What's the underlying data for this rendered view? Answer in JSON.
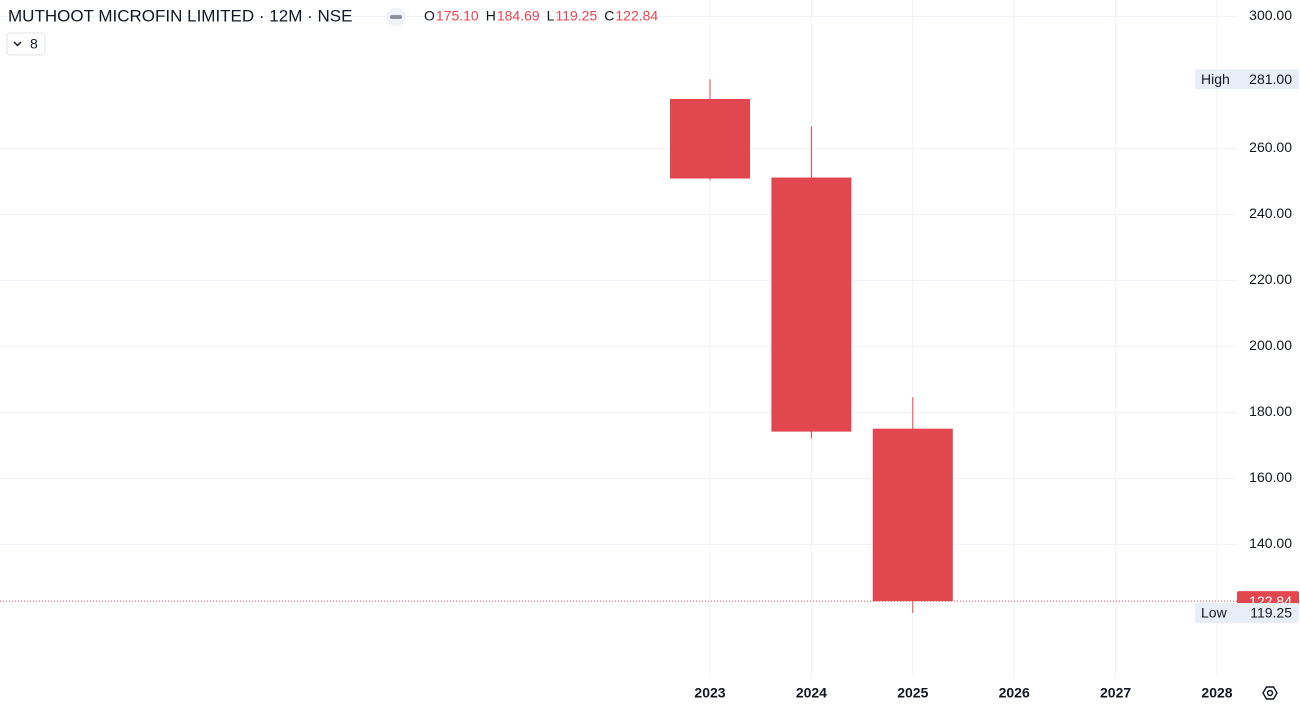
{
  "chart_data": {
    "type": "candlestick",
    "title": "MUTHOOT MICROFIN LIMITED · 12M · NSE",
    "indicator_count": "8",
    "legend": [
      {
        "label": "O",
        "value": "175.10"
      },
      {
        "label": "H",
        "value": "184.69"
      },
      {
        "label": "L",
        "value": "119.25"
      },
      {
        "label": "C",
        "value": "122.84"
      }
    ],
    "categories": [
      "2023",
      "2024",
      "2025",
      "2026",
      "2027",
      "2028"
    ],
    "open": [
      275,
      251.2,
      175.1,
      null,
      null,
      null
    ],
    "high": [
      281,
      266.7,
      184.69,
      null,
      null,
      null
    ],
    "low": [
      250.3,
      172.1,
      119.25,
      null,
      null,
      null
    ],
    "close": [
      250.9,
      174.2,
      122.84,
      null,
      null,
      null
    ],
    "color": "#e2474f",
    "ylim": [
      100,
      305
    ],
    "yticks": [
      {
        "value": 140,
        "label": "140.00"
      },
      {
        "value": 160,
        "label": "160.00"
      },
      {
        "value": 180,
        "label": "180.00"
      },
      {
        "value": 200,
        "label": "200.00"
      },
      {
        "value": 220,
        "label": "220.00"
      },
      {
        "value": 240,
        "label": "240.00"
      },
      {
        "value": 260,
        "label": "260.00"
      },
      {
        "value": 300,
        "label": "300.00"
      }
    ],
    "grid": true,
    "markers": [
      {
        "name": "High",
        "value": 281,
        "label": "281.00"
      },
      {
        "name": "Low",
        "value": 119.25,
        "label": "119.25"
      }
    ],
    "last_price": {
      "value": 122.84,
      "label": "122.84"
    }
  }
}
